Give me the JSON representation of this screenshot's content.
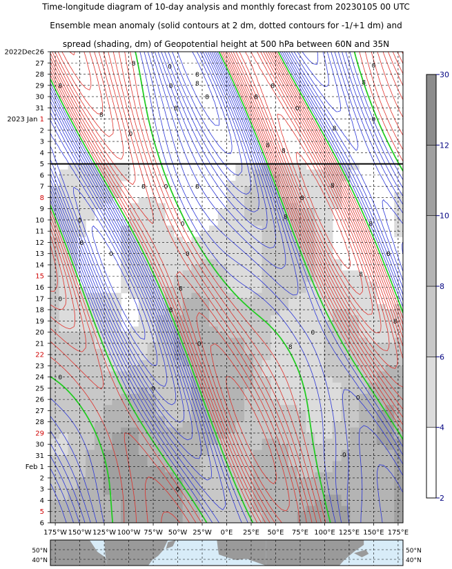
{
  "title_lines": [
    "Time-longitude diagram of 10-day analysis and monthly forecast from 20230105 00 UTC",
    "Ensemble mean anomaly (solid contours at 2 dm, dotted contours for -1/+1 dm) and",
    "spread (shading, dm) of Geopotential height at 500 hPa between 60N and 35N"
  ],
  "chart_data": {
    "type": "heatmap",
    "description_units": "dm",
    "x_axis": {
      "ticks": [
        "175°W",
        "150°W",
        "125°W",
        "100°W",
        "75°W",
        "50°W",
        "25°W",
        "0°E",
        "25°E",
        "50°E",
        "75°E",
        "100°E",
        "125°E",
        "150°E",
        "175°E"
      ],
      "tick_lons": [
        -175,
        -150,
        -125,
        -100,
        -75,
        -50,
        -25,
        0,
        25,
        50,
        75,
        100,
        125,
        150,
        175
      ],
      "range": [
        -180,
        180
      ]
    },
    "y_axis": {
      "direction": "time increasing downward",
      "range": [
        "2022-12-26",
        "2023-02-06"
      ],
      "ticks": [
        {
          "label": "2022Dec26",
          "date": "2022-12-26",
          "weekend": false
        },
        {
          "label": "27",
          "date": "2022-12-27",
          "weekend": false
        },
        {
          "label": "28",
          "date": "2022-12-28",
          "weekend": false
        },
        {
          "label": "29",
          "date": "2022-12-29",
          "weekend": false
        },
        {
          "label": "30",
          "date": "2022-12-30",
          "weekend": false
        },
        {
          "label": "31",
          "date": "2022-12-31",
          "weekend": false
        },
        {
          "label": "2023 Jan 1",
          "date": "2023-01-01",
          "weekend": true,
          "prefix": "2023 Jan ",
          "day": "1"
        },
        {
          "label": "2",
          "date": "2023-01-02",
          "weekend": false
        },
        {
          "label": "3",
          "date": "2023-01-03",
          "weekend": false
        },
        {
          "label": "4",
          "date": "2023-01-04",
          "weekend": false
        },
        {
          "label": "5",
          "date": "2023-01-05",
          "weekend": false
        },
        {
          "label": "6",
          "date": "2023-01-06",
          "weekend": false
        },
        {
          "label": "7",
          "date": "2023-01-07",
          "weekend": false
        },
        {
          "label": "8",
          "date": "2023-01-08",
          "weekend": true
        },
        {
          "label": "9",
          "date": "2023-01-09",
          "weekend": false
        },
        {
          "label": "10",
          "date": "2023-01-10",
          "weekend": false
        },
        {
          "label": "11",
          "date": "2023-01-11",
          "weekend": false
        },
        {
          "label": "12",
          "date": "2023-01-12",
          "weekend": false
        },
        {
          "label": "13",
          "date": "2023-01-13",
          "weekend": false
        },
        {
          "label": "14",
          "date": "2023-01-14",
          "weekend": false
        },
        {
          "label": "15",
          "date": "2023-01-15",
          "weekend": true
        },
        {
          "label": "16",
          "date": "2023-01-16",
          "weekend": false
        },
        {
          "label": "17",
          "date": "2023-01-17",
          "weekend": false
        },
        {
          "label": "18",
          "date": "2023-01-18",
          "weekend": false
        },
        {
          "label": "19",
          "date": "2023-01-19",
          "weekend": false
        },
        {
          "label": "20",
          "date": "2023-01-20",
          "weekend": false
        },
        {
          "label": "21",
          "date": "2023-01-21",
          "weekend": false
        },
        {
          "label": "22",
          "date": "2023-01-22",
          "weekend": true
        },
        {
          "label": "23",
          "date": "2023-01-23",
          "weekend": false
        },
        {
          "label": "24",
          "date": "2023-01-24",
          "weekend": false
        },
        {
          "label": "25",
          "date": "2023-01-25",
          "weekend": false
        },
        {
          "label": "26",
          "date": "2023-01-26",
          "weekend": false
        },
        {
          "label": "27",
          "date": "2023-01-27",
          "weekend": false
        },
        {
          "label": "28",
          "date": "2023-01-28",
          "weekend": false
        },
        {
          "label": "29",
          "date": "2023-01-29",
          "weekend": true
        },
        {
          "label": "30",
          "date": "2023-01-30",
          "weekend": false
        },
        {
          "label": "31",
          "date": "2023-01-31",
          "weekend": false
        },
        {
          "label": "Feb 1",
          "date": "2023-02-01",
          "weekend": false
        },
        {
          "label": "2",
          "date": "2023-02-02",
          "weekend": false
        },
        {
          "label": "3",
          "date": "2023-02-03",
          "weekend": false
        },
        {
          "label": "4",
          "date": "2023-02-04",
          "weekend": false
        },
        {
          "label": "5",
          "date": "2023-02-05",
          "weekend": true
        },
        {
          "label": "6",
          "date": "2023-02-06",
          "weekend": false
        }
      ]
    },
    "analysis_forecast_boundary": "2023-01-05",
    "colorbar": {
      "ticks": [
        "2",
        "4",
        "6",
        "8",
        "10",
        "12",
        "30"
      ],
      "levels": [
        2,
        4,
        6,
        8,
        10,
        12,
        30
      ],
      "fills": [
        "#ffffff",
        "#dcdcdc",
        "#c8c8c8",
        "#b4b4b4",
        "#a0a0a0",
        "#8c8c8c"
      ]
    },
    "colors": {
      "positive_contour": "#e0302a",
      "negative_contour": "#2a35d8",
      "zero_contour": "#22cc22",
      "weekend_label": "#d00000",
      "colorbar_label": "#000080",
      "land": "#9a9a9a",
      "ocean": "#d8ecf8"
    },
    "map_lat_labels": [
      "50°N",
      "40°N"
    ],
    "contour_labels": [
      {
        "text": "8",
        "lon": -95,
        "date": "2022-12-27"
      },
      {
        "text": "0",
        "lon": -58,
        "date": "2022-12-27.3"
      },
      {
        "text": "0",
        "lon": -57,
        "date": "2022-12-29"
      },
      {
        "text": "8",
        "lon": -30,
        "date": "2022-12-28"
      },
      {
        "text": "8",
        "lon": -20,
        "date": "2022-12-30"
      },
      {
        "text": "8",
        "lon": -52,
        "date": "2022-12-31"
      },
      {
        "text": "8",
        "lon": -128,
        "date": "2022-12-31.6"
      },
      {
        "text": "8",
        "lon": -170,
        "date": "2022-12-29"
      },
      {
        "text": "0",
        "lon": -98,
        "date": "2023-01-02.3"
      },
      {
        "text": "8",
        "lon": -30,
        "date": "2022-12-28.8"
      },
      {
        "text": "8",
        "lon": 30,
        "date": "2022-12-30"
      },
      {
        "text": "8",
        "lon": 47,
        "date": "2022-12-29"
      },
      {
        "text": "0",
        "lon": 72,
        "date": "2022-12-31"
      },
      {
        "text": "8",
        "lon": 110,
        "date": "2023-01-01.8"
      },
      {
        "text": "0",
        "lon": 150,
        "date": "2023-01-01"
      },
      {
        "text": "8",
        "lon": 140,
        "date": "2022-12-28.7"
      },
      {
        "text": "0",
        "lon": 150,
        "date": "2022-12-27.2"
      },
      {
        "text": "8",
        "lon": 42,
        "date": "2023-01-03.3"
      },
      {
        "text": "8",
        "lon": 58,
        "date": "2023-01-03.8"
      },
      {
        "text": "8",
        "lon": -85,
        "date": "2023-01-07"
      },
      {
        "text": "0",
        "lon": -62,
        "date": "2023-01-07"
      },
      {
        "text": "8",
        "lon": -30,
        "date": "2023-01-07"
      },
      {
        "text": "8",
        "lon": 77,
        "date": "2023-01-08"
      },
      {
        "text": "8",
        "lon": 108,
        "date": "2023-01-06.9"
      },
      {
        "text": "0",
        "lon": -150,
        "date": "2023-01-10"
      },
      {
        "text": "0",
        "lon": -45,
        "date": "2023-01-10.3"
      },
      {
        "text": "8",
        "lon": 60,
        "date": "2023-01-09.7"
      },
      {
        "text": "8",
        "lon": 147,
        "date": "2023-01-10.3"
      },
      {
        "text": "8",
        "lon": -148,
        "date": "2023-01-12"
      },
      {
        "text": "0",
        "lon": -118,
        "date": "2023-01-13"
      },
      {
        "text": "0",
        "lon": -40,
        "date": "2023-01-13"
      },
      {
        "text": "8",
        "lon": 165,
        "date": "2023-01-13"
      },
      {
        "text": "8",
        "lon": 137,
        "date": "2023-01-14.8"
      },
      {
        "text": "0",
        "lon": -170,
        "date": "2023-01-17"
      },
      {
        "text": "8",
        "lon": -47,
        "date": "2023-01-16.1"
      },
      {
        "text": "8",
        "lon": -57,
        "date": "2023-01-18"
      },
      {
        "text": "8",
        "lon": 172,
        "date": "2023-01-19"
      },
      {
        "text": "0",
        "lon": -28,
        "date": "2023-01-21"
      },
      {
        "text": "8",
        "lon": 65,
        "date": "2023-01-21.3"
      },
      {
        "text": "0",
        "lon": 88,
        "date": "2023-01-20"
      },
      {
        "text": "0",
        "lon": -170,
        "date": "2023-01-24"
      },
      {
        "text": "0",
        "lon": -75,
        "date": "2023-01-25"
      },
      {
        "text": "0",
        "lon": 134,
        "date": "2023-01-25.8"
      },
      {
        "text": "0",
        "lon": 120,
        "date": "2023-01-30.9"
      },
      {
        "text": "0",
        "lon": -50,
        "date": "2023-02-03"
      }
    ]
  }
}
